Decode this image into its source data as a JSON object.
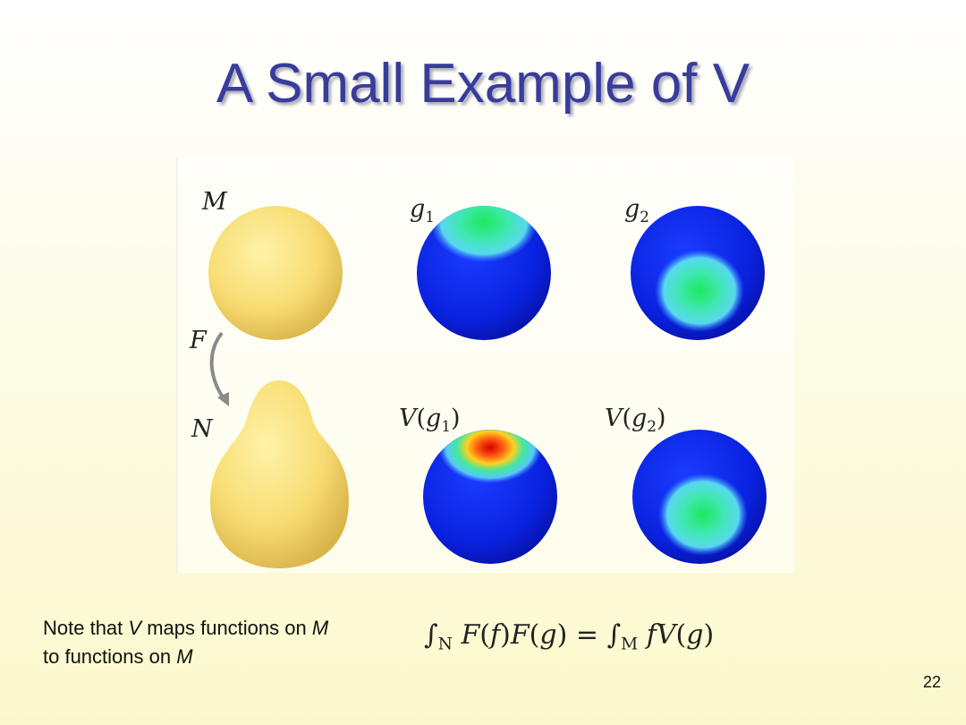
{
  "title": "A Small Example of V",
  "figure": {
    "labels": [
      {
        "segs": [
          {
            "t": "M",
            "i": true
          }
        ]
      },
      {
        "segs": [
          {
            "t": "g",
            "i": true
          },
          {
            "t": "1",
            "sub": true
          }
        ]
      },
      {
        "segs": [
          {
            "t": "g",
            "i": true
          },
          {
            "t": "2",
            "sub": true
          }
        ]
      },
      {
        "segs": [
          {
            "t": "F",
            "i": true
          }
        ]
      },
      {
        "segs": [
          {
            "t": "N",
            "i": true
          }
        ]
      },
      {
        "segs": [
          {
            "t": "V",
            "i": true
          },
          {
            "t": "("
          },
          {
            "t": "g",
            "i": true
          },
          {
            "t": "1",
            "sub": true
          },
          {
            "t": ")"
          }
        ]
      },
      {
        "segs": [
          {
            "t": "V",
            "i": true
          },
          {
            "t": "("
          },
          {
            "t": "g",
            "i": true
          },
          {
            "t": "2",
            "sub": true
          },
          {
            "t": ")"
          }
        ]
      }
    ]
  },
  "note": {
    "lines": [
      [
        {
          "t": "Note that "
        },
        {
          "t": "V",
          "i": true
        },
        {
          "t": " maps functions on "
        },
        {
          "t": "M",
          "i": true
        }
      ],
      [
        {
          "t": "to functions on "
        },
        {
          "t": "M",
          "i": true
        }
      ]
    ]
  },
  "formula": {
    "segs": [
      {
        "t": "∫"
      },
      {
        "t": "N",
        "sub": true,
        "i": true
      },
      {
        "t": " F",
        "i": true
      },
      {
        "t": "("
      },
      {
        "t": "f",
        "i": true
      },
      {
        "t": ")"
      },
      {
        "t": "F",
        "i": true
      },
      {
        "t": "("
      },
      {
        "t": "g",
        "i": true
      },
      {
        "t": ") = ∫"
      },
      {
        "t": "M",
        "sub": true,
        "i": true
      },
      {
        "t": " fV",
        "i": true
      },
      {
        "t": "("
      },
      {
        "t": "g",
        "i": true
      },
      {
        "t": ")"
      }
    ]
  },
  "page_number": "22"
}
